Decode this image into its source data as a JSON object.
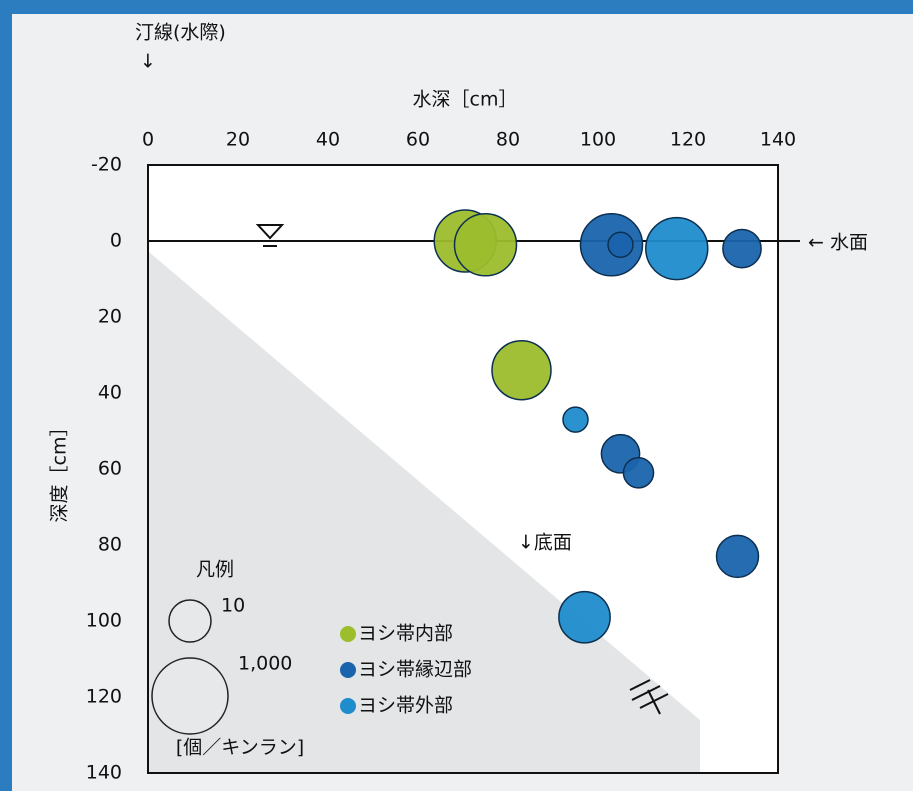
{
  "chart_data": {
    "type": "scatter",
    "x_label": "水深［cm］",
    "y_label": "深度［cm］",
    "xlim": [
      0,
      140
    ],
    "xticks": [
      0,
      20,
      40,
      60,
      80,
      100,
      120,
      140
    ],
    "ylim": [
      -20,
      140
    ],
    "yticks": [
      -20,
      0,
      20,
      40,
      60,
      80,
      100,
      120,
      140
    ],
    "y_inverted": true,
    "annotations": [
      "汀線(水際)",
      "↓",
      "← 水面",
      "↓底面"
    ],
    "size_legend": {
      "title": "凡例",
      "unit": "[個／キンラン]",
      "sizes": [
        {
          "value": 10,
          "label": "10"
        },
        {
          "value": 1000,
          "label": "1,000"
        }
      ]
    },
    "series": [
      {
        "name": "ヨシ帯内部",
        "color": "#9cbd2c",
        "x": [
          70.5,
          75,
          83
        ],
        "y": [
          0,
          1,
          34
        ],
        "sizes": [
          150,
          150,
          100
        ]
      },
      {
        "name": "ヨシ帯縁辺部",
        "color": "#1a64ad",
        "x": [
          103,
          105,
          132,
          105,
          109,
          131
        ],
        "y": [
          1,
          1,
          2,
          56,
          61,
          83
        ],
        "sizes": [
          150,
          1,
          6,
          6,
          2,
          10
        ]
      },
      {
        "name": "ヨシ帯外部",
        "color": "#1f8ccc",
        "x": [
          117.5,
          95,
          97
        ],
        "y": [
          2,
          47,
          99
        ],
        "sizes": [
          150,
          1,
          35
        ]
      }
    ]
  }
}
